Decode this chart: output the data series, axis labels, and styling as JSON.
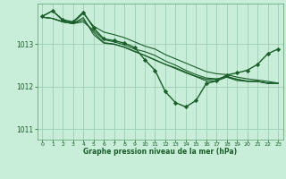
{
  "background_color": "#c8edd8",
  "plot_bg_color": "#c8edd8",
  "grid_color": "#9ecfb4",
  "line_color": "#1a5e2a",
  "marker_color": "#1a5e2a",
  "xlabel": "Graphe pression niveau de la mer (hPa)",
  "ylim": [
    1010.75,
    1013.95
  ],
  "xlim": [
    -0.5,
    23.5
  ],
  "yticks": [
    1011,
    1012,
    1013
  ],
  "xticks": [
    0,
    1,
    2,
    3,
    4,
    5,
    6,
    7,
    8,
    9,
    10,
    11,
    12,
    13,
    14,
    15,
    16,
    17,
    18,
    19,
    20,
    21,
    22,
    23
  ],
  "series": [
    {
      "x": [
        0,
        1,
        2,
        3,
        4,
        5,
        6,
        7,
        8,
        9,
        10,
        11,
        12,
        13,
        14,
        15,
        16,
        17,
        18,
        19,
        20,
        21,
        22,
        23
      ],
      "y": [
        1013.65,
        1013.78,
        1013.55,
        1013.5,
        1013.72,
        1013.42,
        1013.28,
        1013.22,
        1013.15,
        1013.05,
        1012.95,
        1012.88,
        1012.75,
        1012.65,
        1012.55,
        1012.45,
        1012.35,
        1012.3,
        1012.28,
        1012.22,
        1012.18,
        1012.15,
        1012.12,
        1012.08
      ],
      "has_markers": false,
      "linewidth": 0.8
    },
    {
      "x": [
        0,
        1,
        2,
        3,
        4,
        5,
        6,
        7,
        8,
        9,
        10,
        11,
        12,
        13,
        14,
        15,
        16,
        17,
        18,
        19,
        20,
        21,
        22,
        23
      ],
      "y": [
        1013.63,
        1013.6,
        1013.52,
        1013.48,
        1013.52,
        1013.32,
        1013.1,
        1013.05,
        1012.98,
        1012.88,
        1012.82,
        1012.73,
        1012.6,
        1012.5,
        1012.38,
        1012.28,
        1012.2,
        1012.18,
        1012.22,
        1012.14,
        1012.12,
        1012.12,
        1012.08,
        1012.08
      ],
      "has_markers": false,
      "linewidth": 0.8
    },
    {
      "x": [
        0,
        1,
        2,
        3,
        4,
        5,
        6,
        7,
        8,
        9,
        10,
        11,
        12,
        13,
        14,
        15,
        16,
        17,
        18,
        19,
        20,
        21,
        22,
        23
      ],
      "y": [
        1013.63,
        1013.6,
        1013.52,
        1013.48,
        1013.57,
        1013.28,
        1013.03,
        1013.0,
        1012.92,
        1012.82,
        1012.73,
        1012.63,
        1012.52,
        1012.42,
        1012.32,
        1012.23,
        1012.13,
        1012.13,
        1012.22,
        1012.17,
        1012.13,
        1012.12,
        1012.08,
        1012.08
      ],
      "has_markers": false,
      "linewidth": 0.8
    },
    {
      "x": [
        0,
        1,
        2,
        3,
        4,
        5,
        6,
        7,
        8,
        9,
        10,
        11,
        12,
        13,
        14,
        15,
        16,
        17,
        18,
        19,
        20,
        21,
        22,
        23
      ],
      "y": [
        1013.63,
        1013.6,
        1013.52,
        1013.48,
        1013.62,
        1013.22,
        1013.02,
        1012.99,
        1012.93,
        1012.83,
        1012.73,
        1012.62,
        1012.52,
        1012.44,
        1012.34,
        1012.24,
        1012.17,
        1012.17,
        1012.24,
        1012.17,
        1012.12,
        1012.12,
        1012.07,
        1012.07
      ],
      "has_markers": false,
      "linewidth": 0.8
    },
    {
      "x": [
        0,
        1,
        2,
        3,
        4,
        5,
        6,
        7,
        8,
        9,
        10,
        11,
        12,
        13,
        14,
        15,
        16,
        17,
        18,
        19,
        20,
        21,
        22,
        23
      ],
      "y": [
        1013.65,
        1013.78,
        1013.57,
        1013.52,
        1013.75,
        1013.38,
        1013.12,
        1013.08,
        1013.02,
        1012.92,
        1012.63,
        1012.38,
        1011.88,
        1011.62,
        1011.52,
        1011.67,
        1012.07,
        1012.13,
        1012.27,
        1012.32,
        1012.38,
        1012.52,
        1012.77,
        1012.88
      ],
      "has_markers": true,
      "linewidth": 1.0
    }
  ]
}
